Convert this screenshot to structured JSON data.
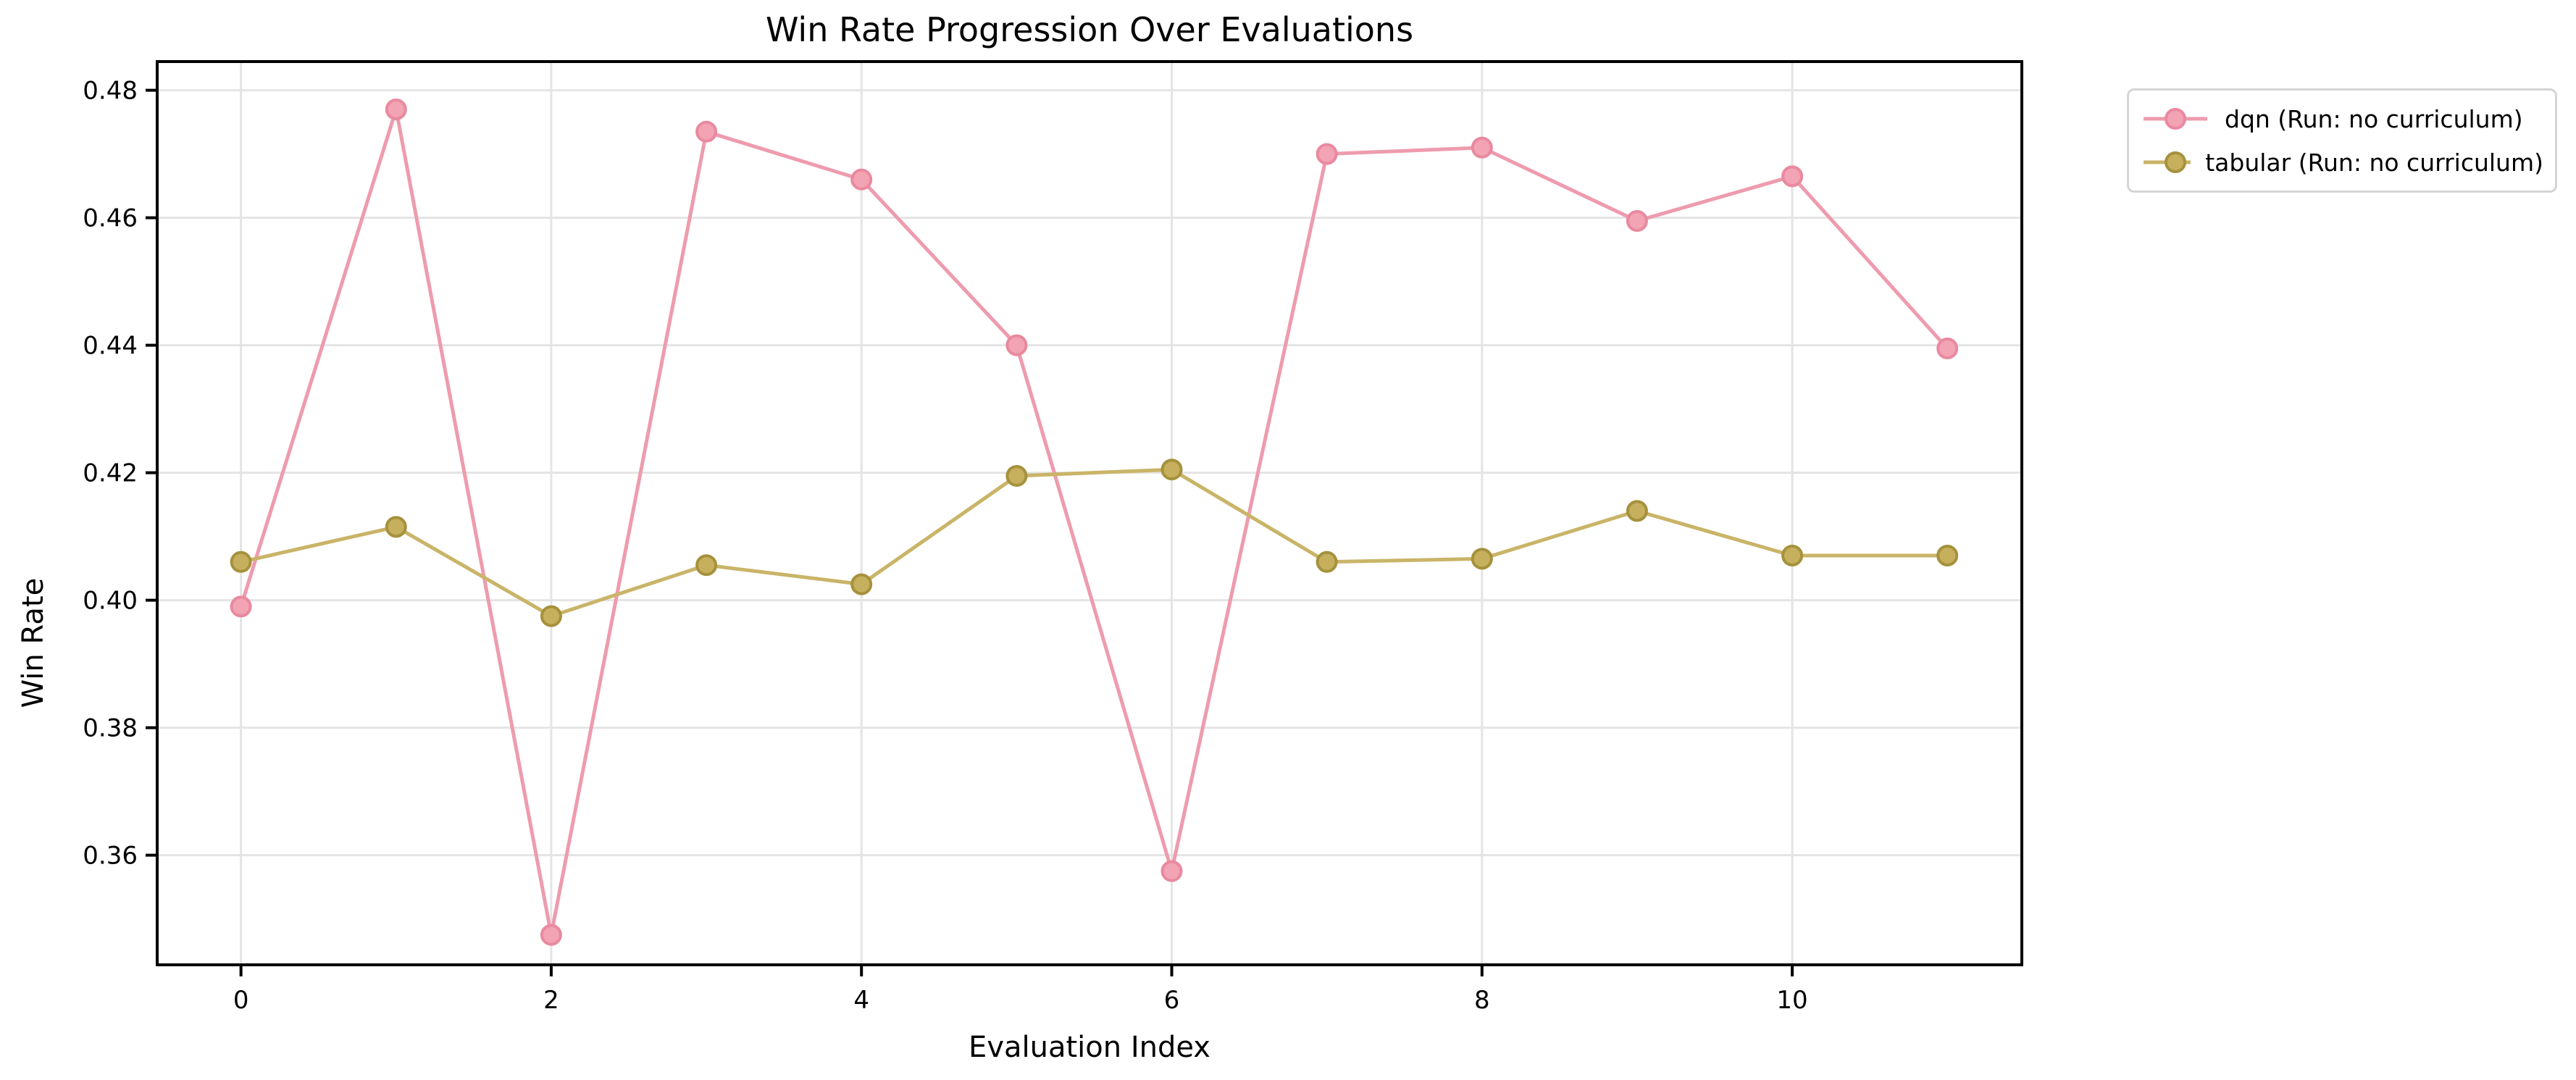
{
  "figure": {
    "background": "#ffffff"
  },
  "chart_data": {
    "type": "line",
    "title": "Win Rate Progression Over Evaluations",
    "xlabel": "Evaluation Index",
    "ylabel": "Win Rate",
    "x": [
      0,
      1,
      2,
      3,
      4,
      5,
      6,
      7,
      8,
      9,
      10,
      11
    ],
    "series": [
      {
        "name": "dqn (Run: no curriculum)",
        "line_color": "#ee9bae",
        "marker_face": "#f2a3b4",
        "marker_edge": "#e9899f",
        "values": [
          0.399,
          0.477,
          0.3475,
          0.4735,
          0.466,
          0.44,
          0.3575,
          0.47,
          0.471,
          0.4595,
          0.4665,
          0.4395
        ]
      },
      {
        "name": "tabular (Run: no curriculum)",
        "line_color": "#c9b468",
        "marker_face": "#c6b05e",
        "marker_edge": "#a6913c",
        "values": [
          0.406,
          0.4115,
          0.3975,
          0.4055,
          0.4025,
          0.4195,
          0.4205,
          0.406,
          0.4065,
          0.414,
          0.407,
          0.407
        ]
      }
    ],
    "xticks": [
      0,
      2,
      4,
      6,
      8,
      10
    ],
    "yticks": [
      0.36,
      0.38,
      0.4,
      0.42,
      0.44,
      0.46,
      0.48
    ],
    "xlim": [
      -0.54,
      11.48
    ],
    "ylim": [
      0.3428,
      0.4845
    ],
    "grid": true,
    "legend_position": "outside-right"
  },
  "colors": {
    "grid": "#e4e4e4",
    "spine": "#000000",
    "text": "#000000",
    "legend_border": "#d4d4d4"
  }
}
